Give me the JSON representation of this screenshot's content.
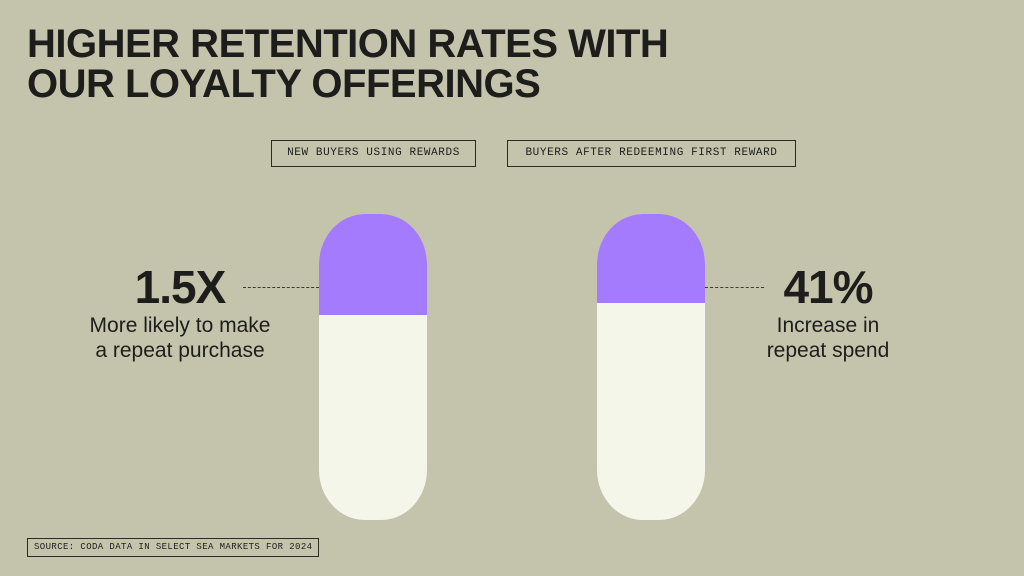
{
  "title": {
    "line1": "HIGHER RETENTION RATES WITH",
    "line2": "OUR LOYALTY OFFERINGS"
  },
  "source": "SOURCE: CODA DATA IN SELECT SEA MARKETS FOR 2024",
  "colors": {
    "background": "#c4c4ac",
    "pill_fill": "#a47bfc",
    "pill_empty": "#f5f6ea",
    "text": "#1d1d1b"
  },
  "chart_data": {
    "type": "bar",
    "categories": [
      "NEW BUYERS USING REWARDS",
      "BUYERS AFTER REDEEMING FIRST REWARD"
    ],
    "values": [
      "1.5X",
      "41%"
    ],
    "fill_fraction": [
      0.33,
      0.29
    ],
    "descriptions": [
      "More likely to make\na repeat purchase",
      "Increase in\nrepeat spend"
    ]
  }
}
